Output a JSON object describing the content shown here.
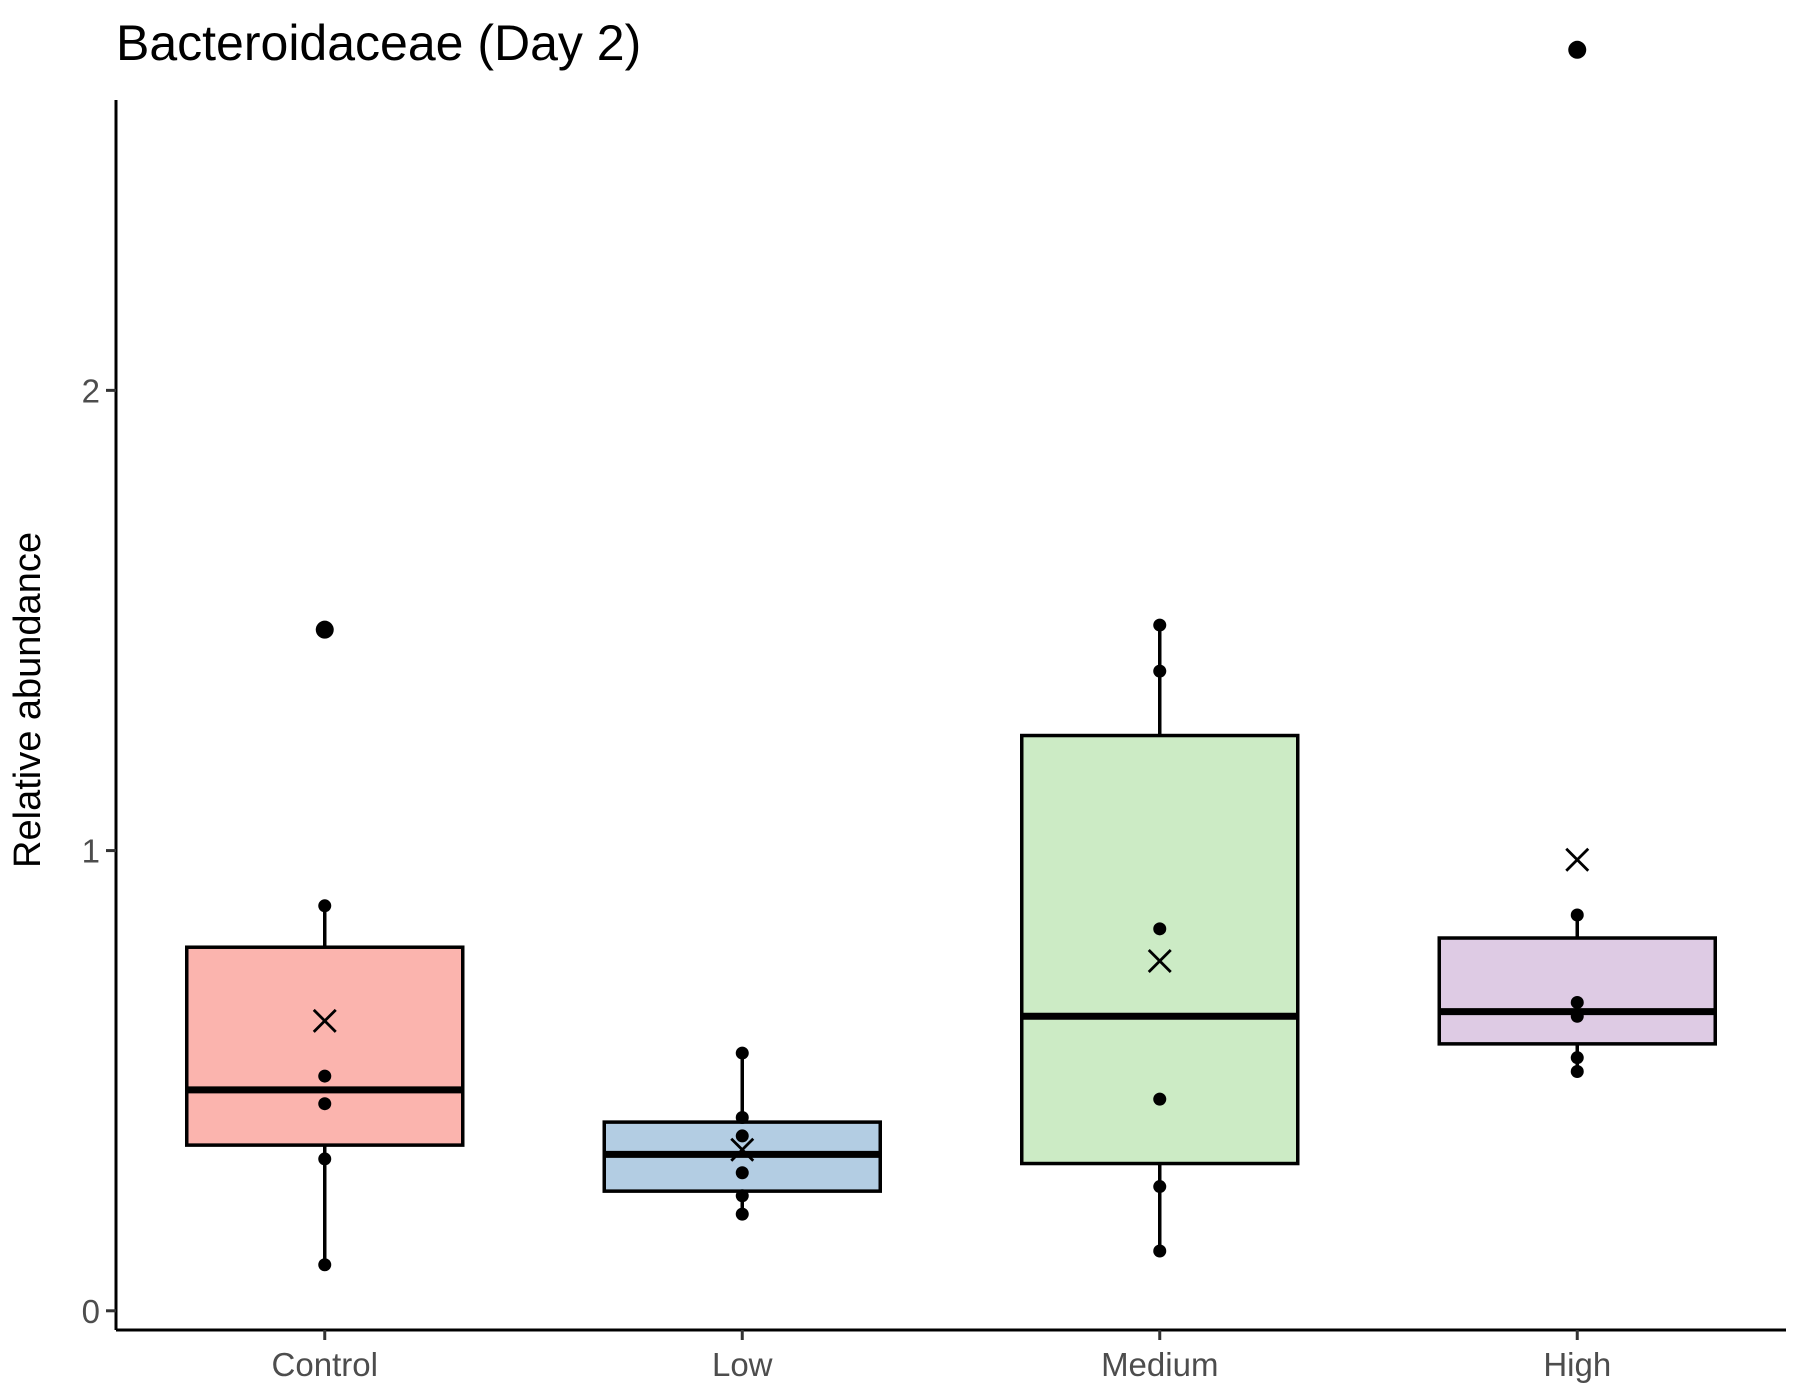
{
  "chart_data": {
    "type": "box",
    "title": "Bacteroidaceae (Day 2)",
    "xlabel": "",
    "ylabel": "Relative abundance",
    "ylim": [
      -0.02,
      2.77
    ],
    "yticks": [
      0,
      1,
      2
    ],
    "ytick_labels": [
      "0",
      "1",
      "2"
    ],
    "categories": [
      "Control",
      "Low",
      "Medium",
      "High"
    ],
    "grid": false,
    "legend": "none",
    "colors": [
      "#fbb4ae",
      "#b3cde3",
      "#ccebc5",
      "#decbe4"
    ],
    "boxes": [
      {
        "category": "Control",
        "q1": 0.36,
        "median": 0.48,
        "q3": 0.79,
        "whisker_low": 0.1,
        "whisker_high": 0.88,
        "mean": 0.63,
        "outliers": [
          1.48
        ],
        "points": [
          1.48,
          0.88,
          0.51,
          0.45,
          0.33,
          0.1
        ]
      },
      {
        "category": "Low",
        "q1": 0.26,
        "median": 0.34,
        "q3": 0.41,
        "whisker_low": 0.21,
        "whisker_high": 0.56,
        "mean": 0.35,
        "outliers": [],
        "points": [
          0.56,
          0.42,
          0.38,
          0.3,
          0.25,
          0.21
        ]
      },
      {
        "category": "Medium",
        "q1": 0.32,
        "median": 0.64,
        "q3": 1.25,
        "whisker_low": 0.13,
        "whisker_high": 1.49,
        "mean": 0.76,
        "outliers": [],
        "points": [
          1.49,
          1.39,
          0.83,
          0.46,
          0.27,
          0.13
        ]
      },
      {
        "category": "High",
        "q1": 0.58,
        "median": 0.65,
        "q3": 0.81,
        "whisker_low": 0.52,
        "whisker_high": 0.86,
        "mean": 0.98,
        "outliers": [
          2.74
        ],
        "points": [
          2.74,
          0.86,
          0.67,
          0.64,
          0.55,
          0.52
        ]
      }
    ]
  }
}
